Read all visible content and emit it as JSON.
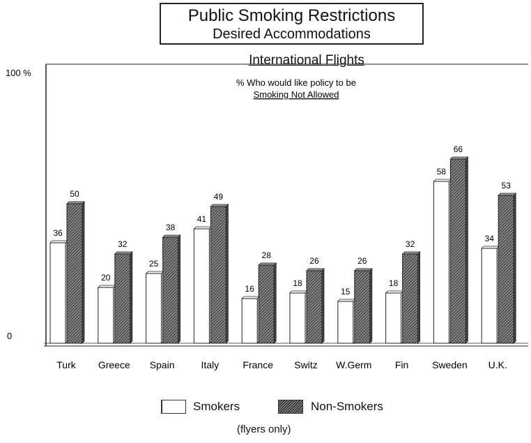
{
  "title": "Public Smoking Restrictions",
  "title_line2": "Desired Accommodations",
  "subtitle": "International Flights",
  "plot_note_line1": "% Who would like policy to be",
  "plot_note_line2": "Smoking Not Allowed",
  "legend": {
    "smokers": "Smokers",
    "non_smokers": "Non-Smokers"
  },
  "footnote": "(flyers only)",
  "colors": {
    "smokers_fill": "#ffffff",
    "non_smokers_fill": "#555555",
    "axis": "#222222"
  },
  "chart_data": {
    "type": "bar",
    "ytick_labels": [
      "0",
      "100 %"
    ],
    "ylim": [
      0,
      100
    ],
    "categories": [
      "Turk",
      "Greece",
      "Spain",
      "Italy",
      "France",
      "Switz",
      "W.Germ",
      "Fin",
      "Sweden",
      "U.K."
    ],
    "series": [
      {
        "name": "Smokers",
        "values": [
          36,
          20,
          25,
          41,
          16,
          18,
          15,
          18,
          58,
          34
        ]
      },
      {
        "name": "Non-Smokers",
        "values": [
          50,
          32,
          38,
          49,
          28,
          26,
          26,
          32,
          66,
          53
        ]
      }
    ],
    "legend_position": "bottom"
  }
}
